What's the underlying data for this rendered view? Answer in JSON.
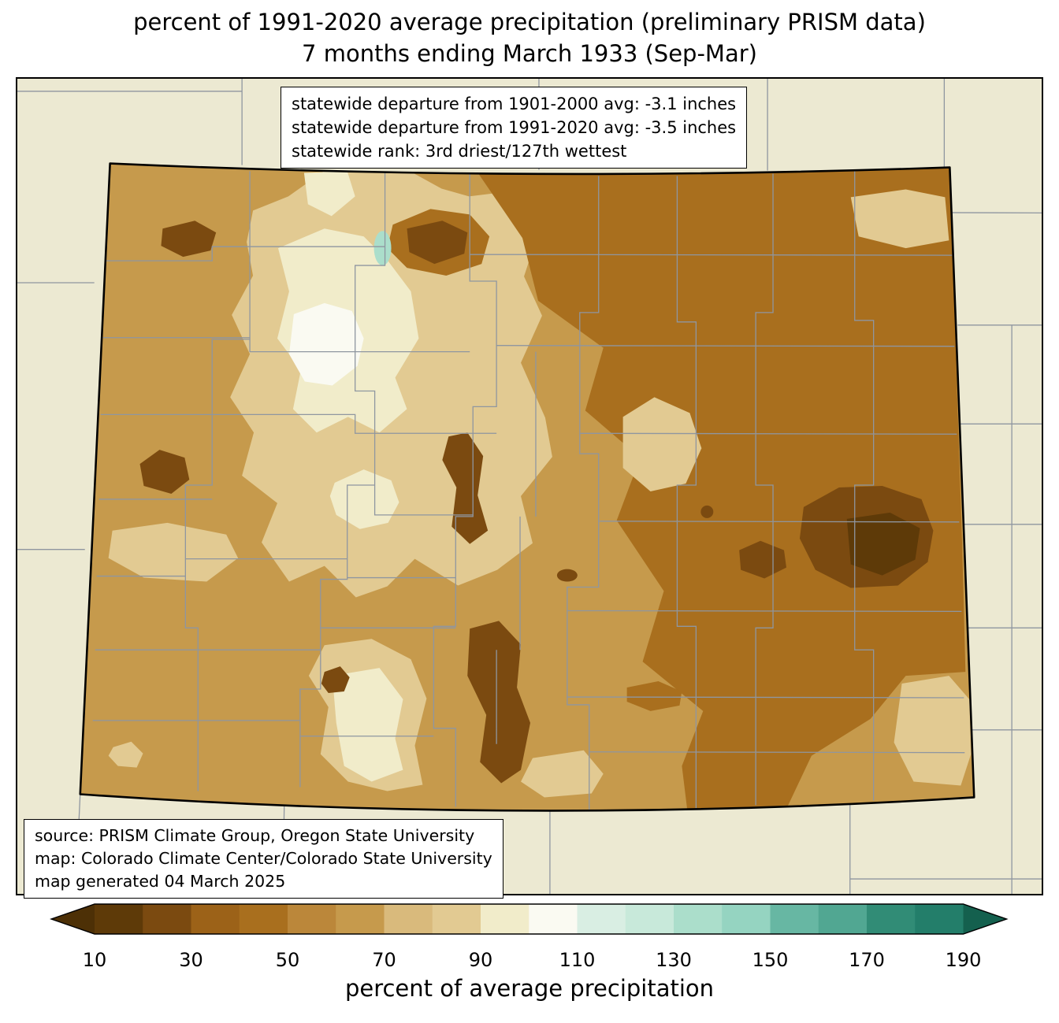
{
  "title": {
    "line1": "percent of 1991-2020 average precipitation (preliminary PRISM data)",
    "line2": "7 months ending March 1933 (Sep-Mar)"
  },
  "stats_box": {
    "lines": [
      "statewide departure from 1901-2000 avg: -3.1 inches",
      "statewide departure from 1991-2020 avg: -3.5 inches",
      "statewide rank: 3rd driest/127th wettest"
    ]
  },
  "source_box": {
    "lines": [
      "source: PRISM Climate Group, Oregon State University",
      "map: Colorado Climate Center/Colorado State University",
      "map generated 04 March 2025"
    ]
  },
  "colorbar": {
    "label": "percent of average precipitation",
    "ticks": [
      "10",
      "30",
      "50",
      "70",
      "90",
      "110",
      "130",
      "150",
      "170",
      "190"
    ],
    "under_arrow_color": "#4d3006",
    "over_arrow_color": "#14604e",
    "segments": [
      {
        "range": "10-20",
        "color": "#5e3a08"
      },
      {
        "range": "20-30",
        "color": "#7b4a10"
      },
      {
        "range": "30-40",
        "color": "#9c6218"
      },
      {
        "range": "40-50",
        "color": "#a96f1e"
      },
      {
        "range": "50-60",
        "color": "#bb873a"
      },
      {
        "range": "60-70",
        "color": "#c69a4c"
      },
      {
        "range": "70-80",
        "color": "#d9ba7c"
      },
      {
        "range": "80-90",
        "color": "#e2ca92"
      },
      {
        "range": "90-100",
        "color": "#f1ecca"
      },
      {
        "range": "100-110",
        "color": "#fafaf2"
      },
      {
        "range": "110-120",
        "color": "#d9eee3"
      },
      {
        "range": "120-130",
        "color": "#c8e9da"
      },
      {
        "range": "130-140",
        "color": "#abdecb"
      },
      {
        "range": "140-150",
        "color": "#95d4c1"
      },
      {
        "range": "150-160",
        "color": "#67b7a3"
      },
      {
        "range": "160-170",
        "color": "#51a792"
      },
      {
        "range": "170-180",
        "color": "#318c76"
      },
      {
        "range": "180-190",
        "color": "#237e6a"
      }
    ]
  },
  "map": {
    "colors": {
      "surround": "#ece9d2",
      "county": "#8f96a0"
    }
  }
}
